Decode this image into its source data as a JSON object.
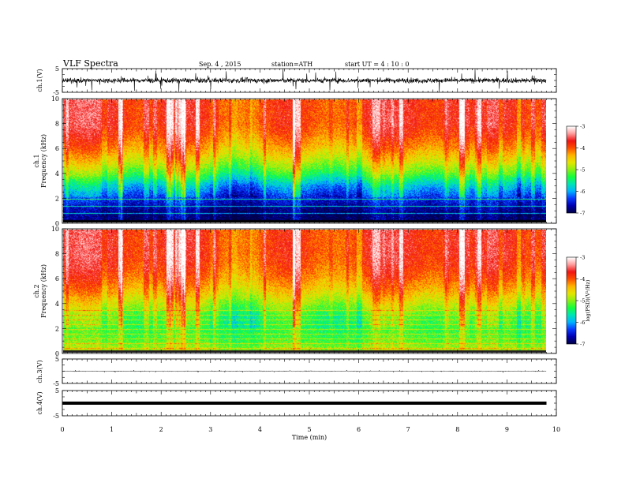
{
  "header": {
    "title": "VLF  Spectra",
    "date": "Sep. 4  , 2015",
    "station": "station=ATH",
    "start": "start  UT  =   4  : 10 : 0"
  },
  "colors": {
    "background": "#ffffff",
    "axes": "#000000",
    "trace": "#000000",
    "colormap": [
      "#00004a",
      "#0000b4",
      "#0a3cff",
      "#00b4ff",
      "#00e6b4",
      "#14ff3c",
      "#8cf014",
      "#e6e600",
      "#ffb400",
      "#ff5000",
      "#f01414",
      "#ff9b9b",
      "#ffffff"
    ]
  },
  "chart_data": [
    {
      "type": "line",
      "panel": "ch1-waveform",
      "ylabel": "ch.1(V)",
      "ylim": [
        -5,
        5
      ],
      "yticks": [
        -5,
        5
      ],
      "x": "time (min)",
      "xlim": [
        0,
        10
      ],
      "data_end_min": 9.8,
      "baseline": 0.0,
      "noise_amplitude": 1.0,
      "burst_amplitude": 5.0
    },
    {
      "type": "heatmap",
      "panel": "ch1-spectrogram",
      "ylabel": "ch.1\nFrequency  (kHz)",
      "ylim": [
        0,
        10
      ],
      "yticks": [
        0,
        2,
        4,
        6,
        8,
        10
      ],
      "xlim": [
        0,
        10
      ],
      "data_end_min": 9.8,
      "colorbar": {
        "label": "log(PSD)(V²/Hz)",
        "range": [
          -7,
          -3
        ],
        "ticks": [
          -7,
          -6,
          -5,
          -4,
          -3
        ]
      },
      "profile": {
        "freq_khz": [
          0,
          0.5,
          1,
          2,
          3,
          4,
          5,
          6,
          7,
          8,
          9,
          10
        ],
        "log_psd": [
          -6.9,
          -6.9,
          -6.8,
          -6.4,
          -5.9,
          -5.2,
          -4.7,
          -4.3,
          -4.0,
          -3.8,
          -3.8,
          -3.8
        ]
      }
    },
    {
      "type": "heatmap",
      "panel": "ch2-spectrogram",
      "ylabel": "ch.2\nFrequency  (kHz)",
      "ylim": [
        0,
        10
      ],
      "yticks": [
        0,
        2,
        4,
        6,
        8,
        10
      ],
      "xlim": [
        0,
        10
      ],
      "data_end_min": 9.8,
      "colorbar": {
        "label": "log(PSD)(V²/Hz)",
        "range": [
          -7,
          -3
        ],
        "ticks": [
          -7,
          -6,
          -5,
          -4,
          -3
        ]
      },
      "profile": {
        "freq_khz": [
          0,
          0.5,
          1,
          2,
          3,
          4,
          5,
          6,
          7,
          8,
          9,
          10
        ],
        "log_psd": [
          -4.8,
          -5.0,
          -5.2,
          -5.3,
          -5.2,
          -4.8,
          -4.4,
          -4.1,
          -3.9,
          -3.8,
          -3.8,
          -3.8
        ]
      }
    },
    {
      "type": "line",
      "panel": "ch3-waveform",
      "ylabel": "ch.3(V)",
      "ylim": [
        -5,
        5
      ],
      "yticks": [
        -5,
        5
      ],
      "xlim": [
        0,
        10
      ],
      "data_end_min": 9.8,
      "baseline": 0.0,
      "noise_amplitude": 0.15,
      "burst_amplitude": 0.5
    },
    {
      "type": "line",
      "panel": "ch4-waveform",
      "ylabel": "ch.4(V)",
      "ylim": [
        -5,
        5
      ],
      "yticks": [
        -5,
        5
      ],
      "xlim": [
        0,
        10
      ],
      "data_end_min": 9.8,
      "baseline": 0.0,
      "noise_amplitude": 0.3,
      "burst_amplitude": 0.3
    }
  ],
  "x_axis": {
    "label": "Time  (min)",
    "ticks": [
      0,
      1,
      2,
      3,
      4,
      5,
      6,
      7,
      8,
      9,
      10
    ],
    "tick_labels": [
      "0",
      "1",
      "2",
      "3",
      "4",
      "5",
      "6",
      "7",
      "8",
      "9",
      "10"
    ]
  }
}
